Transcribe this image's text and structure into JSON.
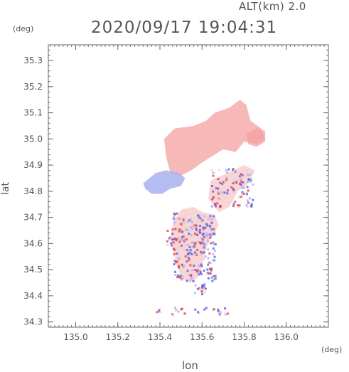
{
  "header": {
    "altitude_label": "ALT(km) 2.0",
    "timestamp": "2020/09/17 19:04:31",
    "y_unit": "(deg)",
    "x_unit": "(deg)"
  },
  "chart_data": {
    "type": "heatmap",
    "title": "2020/09/17 19:04:31",
    "xlabel": "lon",
    "ylabel": "lat",
    "x_unit": "(deg)",
    "y_unit": "(deg)",
    "xlim": [
      134.87,
      136.2
    ],
    "ylim": [
      34.28,
      35.36
    ],
    "x_ticks": [
      135.0,
      135.2,
      135.4,
      135.6,
      135.8,
      136.0
    ],
    "x_tick_labels": [
      "135.0",
      "135.2",
      "135.4",
      "135.6",
      "135.8",
      "136.0"
    ],
    "y_ticks": [
      34.3,
      34.4,
      34.5,
      34.6,
      34.7,
      34.8,
      34.9,
      35.0,
      35.1,
      35.2,
      35.3
    ],
    "y_tick_labels": [
      "34.3",
      "34.4",
      "34.5",
      "34.6",
      "34.7",
      "34.8",
      "34.9",
      "35.0",
      "35.1",
      "35.2",
      "35.3"
    ],
    "colors": {
      "positive": "#f4a0a0",
      "positive_light": "#f7c8c8",
      "negative": "#a8b0f0",
      "negative_strong": "#5060e8",
      "positive_strong": "#e84040"
    },
    "regions": [
      {
        "name": "north-main",
        "sign": "positive",
        "lonlat": [
          [
            135.42,
            35.0
          ],
          [
            135.47,
            35.04
          ],
          [
            135.56,
            35.05
          ],
          [
            135.62,
            35.07
          ],
          [
            135.66,
            35.1
          ],
          [
            135.73,
            35.12
          ],
          [
            135.78,
            35.15
          ],
          [
            135.81,
            35.13
          ],
          [
            135.83,
            35.07
          ],
          [
            135.88,
            35.04
          ],
          [
            135.9,
            35.0
          ],
          [
            135.86,
            34.98
          ],
          [
            135.8,
            34.99
          ],
          [
            135.76,
            34.95
          ],
          [
            135.7,
            34.96
          ],
          [
            135.64,
            34.93
          ],
          [
            135.6,
            34.91
          ],
          [
            135.55,
            34.88
          ],
          [
            135.5,
            34.86
          ],
          [
            135.45,
            34.87
          ],
          [
            135.43,
            34.93
          ]
        ]
      },
      {
        "name": "north-east-tail",
        "sign": "positive",
        "lonlat": [
          [
            135.81,
            35.02
          ],
          [
            135.86,
            35.04
          ],
          [
            135.9,
            35.03
          ],
          [
            135.9,
            34.99
          ],
          [
            135.86,
            34.97
          ],
          [
            135.82,
            34.98
          ]
        ]
      },
      {
        "name": "west-blue",
        "sign": "negative",
        "lonlat": [
          [
            135.32,
            34.83
          ],
          [
            135.38,
            34.87
          ],
          [
            135.43,
            34.88
          ],
          [
            135.49,
            34.87
          ],
          [
            135.52,
            34.85
          ],
          [
            135.5,
            34.82
          ],
          [
            135.45,
            34.81
          ],
          [
            135.41,
            34.79
          ],
          [
            135.36,
            34.79
          ],
          [
            135.33,
            34.81
          ]
        ]
      },
      {
        "name": "central",
        "sign": "positive_light",
        "lonlat": [
          [
            135.5,
            34.73
          ],
          [
            135.56,
            34.74
          ],
          [
            135.6,
            34.72
          ],
          [
            135.66,
            34.71
          ],
          [
            135.68,
            34.67
          ],
          [
            135.64,
            34.62
          ],
          [
            135.62,
            34.58
          ],
          [
            135.6,
            34.52
          ],
          [
            135.58,
            34.47
          ],
          [
            135.54,
            34.45
          ],
          [
            135.5,
            34.47
          ],
          [
            135.48,
            34.52
          ],
          [
            135.46,
            34.58
          ],
          [
            135.45,
            34.63
          ],
          [
            135.47,
            34.69
          ]
        ]
      },
      {
        "name": "east-scatter",
        "sign": "positive_light",
        "lonlat": [
          [
            135.64,
            34.84
          ],
          [
            135.72,
            34.87
          ],
          [
            135.8,
            34.9
          ],
          [
            135.85,
            34.88
          ],
          [
            135.82,
            34.83
          ],
          [
            135.77,
            34.8
          ],
          [
            135.73,
            34.74
          ],
          [
            135.68,
            34.72
          ],
          [
            135.63,
            34.77
          ]
        ]
      }
    ]
  }
}
